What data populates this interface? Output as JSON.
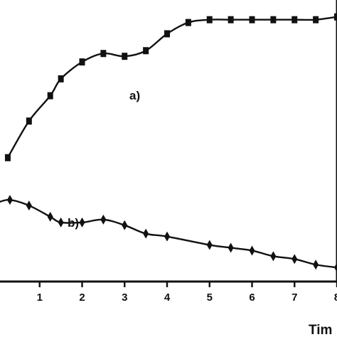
{
  "chart_data": {
    "type": "line",
    "xlabel": "Tim",
    "x_ticks": [
      "1",
      "2",
      "3",
      "4",
      "5",
      "6",
      "7",
      "8"
    ],
    "xlim": [
      0,
      8
    ],
    "series": [
      {
        "name": "a)",
        "marker": "square",
        "x": [
          0.25,
          0.75,
          1.25,
          1.5,
          2.0,
          2.5,
          3.0,
          3.5,
          4.0,
          4.5,
          5.0,
          5.5,
          6.0,
          6.5,
          7.0,
          7.5,
          8.0
        ],
        "y": [
          0.44,
          0.57,
          0.66,
          0.72,
          0.78,
          0.81,
          0.8,
          0.82,
          0.88,
          0.92,
          0.93,
          0.93,
          0.93,
          0.93,
          0.93,
          0.93,
          0.94
        ]
      },
      {
        "name": "b)",
        "marker": "diamond",
        "x": [
          0.0,
          0.3,
          0.75,
          1.25,
          1.5,
          2.0,
          2.5,
          3.0,
          3.5,
          4.0,
          5.0,
          5.5,
          6.0,
          6.5,
          7.0,
          7.5,
          8.0
        ],
        "y": [
          0.28,
          0.29,
          0.27,
          0.23,
          0.21,
          0.21,
          0.22,
          0.2,
          0.17,
          0.16,
          0.13,
          0.12,
          0.11,
          0.09,
          0.08,
          0.06,
          0.05
        ]
      }
    ],
    "ylim": [
      0,
      1
    ],
    "grid": false,
    "legend": "inline labels",
    "colors": {
      "line": "#111111",
      "axis": "#111111",
      "background": "#ffffff"
    }
  }
}
